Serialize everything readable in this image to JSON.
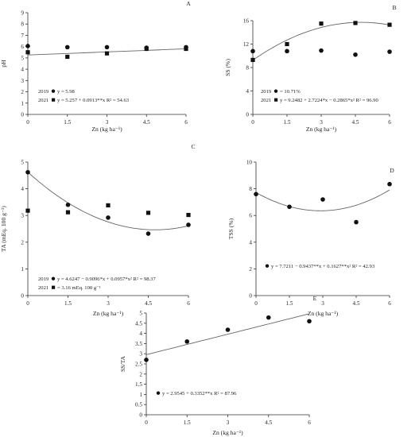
{
  "chart_data": [
    {
      "panel": "A",
      "type": "scatter",
      "ylabel": "pH",
      "xlabel": "Zn (kg ha⁻¹)",
      "x_ticks": [
        "0",
        "1.5",
        "3",
        "4.5",
        "6"
      ],
      "y_ticks": [
        "0",
        "1",
        "2",
        "3",
        "4",
        "5",
        "6",
        "7",
        "8",
        "9"
      ],
      "xlim": [
        0,
        6
      ],
      "ylim": [
        0,
        9
      ],
      "series": [
        {
          "name": "2019",
          "marker": "circle",
          "x": [
            0,
            1.5,
            3,
            4.5,
            6
          ],
          "y": [
            6.05,
            5.95,
            5.95,
            5.9,
            5.95
          ]
        },
        {
          "name": "2021",
          "marker": "square",
          "x": [
            0,
            1.5,
            3,
            4.5,
            6
          ],
          "y": [
            5.5,
            5.1,
            5.4,
            5.8,
            5.8
          ]
        }
      ],
      "fits": [
        {
          "kind": "poly",
          "coef": [
            5.257,
            0.0913
          ]
        }
      ],
      "legend": [
        {
          "year": "2019",
          "marker": "circle",
          "eq": "y = 5.98"
        },
        {
          "year": "2021",
          "marker": "square",
          "eq": "y = 5.257 + 0.0913**x R² = 54.63"
        }
      ]
    },
    {
      "panel": "B",
      "type": "scatter",
      "ylabel": "SS (%)",
      "xlabel": "Zn (kg ha⁻¹)",
      "x_ticks": [
        "0",
        "1.5",
        "3",
        "4.5",
        "6"
      ],
      "y_ticks": [
        "0",
        "4",
        "8",
        "12",
        "16"
      ],
      "xlim": [
        0,
        6
      ],
      "ylim": [
        0,
        16
      ],
      "series": [
        {
          "name": "2019",
          "marker": "circle",
          "x": [
            0,
            1.5,
            3,
            4.5,
            6
          ],
          "y": [
            10.8,
            10.8,
            10.9,
            10.2,
            10.7
          ]
        },
        {
          "name": "2021",
          "marker": "square",
          "x": [
            0,
            1.5,
            3,
            4.5,
            6
          ],
          "y": [
            9.3,
            12.0,
            15.5,
            15.6,
            15.3
          ]
        }
      ],
      "fits": [
        {
          "kind": "poly",
          "coef": [
            9.2482,
            2.7224,
            -0.2865
          ]
        }
      ],
      "legend": [
        {
          "year": "2019",
          "marker": "circle",
          "eq": "= 10.71%"
        },
        {
          "year": "2021",
          "marker": "square",
          "eq": "y = 9.2482 + 2.7224*x − 0.2865*x² R² = 96.90"
        }
      ]
    },
    {
      "panel": "C",
      "type": "scatter",
      "ylabel": "TA (mEq. 100 g⁻¹)",
      "xlabel": "Zn (kg ha⁻¹)",
      "x_ticks": [
        "0",
        "1.5",
        "3",
        "4.5",
        "6"
      ],
      "y_ticks": [
        "0",
        "1",
        "2",
        "3",
        "4",
        "5"
      ],
      "xlim": [
        0,
        6
      ],
      "ylim": [
        0,
        5
      ],
      "series": [
        {
          "name": "2019",
          "marker": "circle",
          "x": [
            0,
            1.5,
            3,
            4.5,
            6
          ],
          "y": [
            4.62,
            3.4,
            2.92,
            2.32,
            2.65
          ]
        },
        {
          "name": "2021",
          "marker": "square",
          "x": [
            0,
            1.5,
            3,
            4.5,
            6
          ],
          "y": [
            3.18,
            3.12,
            3.38,
            3.1,
            3.02
          ]
        }
      ],
      "fits": [
        {
          "kind": "poly",
          "coef": [
            4.6247,
            -0.9096,
            0.0957
          ]
        }
      ],
      "legend": [
        {
          "year": "2019",
          "marker": "circle",
          "eq": "y = 4.6247 − 0.9096*x + 0.0957*x² R² = 98.37"
        },
        {
          "year": "2021",
          "marker": "square",
          "eq": "= 3.16 mEq. 100 g⁻¹"
        }
      ]
    },
    {
      "panel": "D",
      "type": "scatter",
      "ylabel": "TSS (%)",
      "xlabel": "Zn (kg ha⁻¹)",
      "x_ticks": [
        "0",
        "1.5",
        "3",
        "4.5",
        "6"
      ],
      "y_ticks": [
        "0",
        "2",
        "4",
        "6",
        "8",
        "10"
      ],
      "xlim": [
        0,
        6
      ],
      "ylim": [
        0,
        10
      ],
      "series": [
        {
          "name": "",
          "marker": "circle",
          "x": [
            0,
            1.5,
            3,
            4.5,
            6
          ],
          "y": [
            7.6,
            6.65,
            7.2,
            5.5,
            8.35
          ]
        }
      ],
      "fits": [
        {
          "kind": "poly",
          "coef": [
            7.7211,
            -0.9437,
            0.1627
          ]
        }
      ],
      "legend": [
        {
          "year": "",
          "marker": "circle",
          "eq": "y = 7.7211 − 0.9437**x + 0.1627**x² R² = 42.93"
        }
      ]
    },
    {
      "panel": "E",
      "type": "scatter",
      "ylabel": "SS/TA",
      "xlabel": "Zn (kg ha⁻¹)",
      "x_ticks": [
        "0",
        "1.5",
        "3",
        "4.5",
        "6"
      ],
      "y_ticks": [
        "0",
        "0.5",
        "1",
        "1.5",
        "2",
        "2.5",
        "3",
        "3.5",
        "4",
        "4.5",
        "5"
      ],
      "xlim": [
        0,
        6
      ],
      "ylim": [
        0,
        5
      ],
      "series": [
        {
          "name": "",
          "marker": "circle",
          "x": [
            0,
            1.5,
            3,
            4.5,
            6
          ],
          "y": [
            2.7,
            3.6,
            4.18,
            4.78,
            4.6
          ]
        }
      ],
      "fits": [
        {
          "kind": "poly",
          "coef": [
            2.9545,
            0.3352
          ]
        }
      ],
      "legend": [
        {
          "year": "",
          "marker": "circle",
          "eq": "y = 2.9545 + 0.3352**x R² = 87.96"
        }
      ]
    }
  ]
}
